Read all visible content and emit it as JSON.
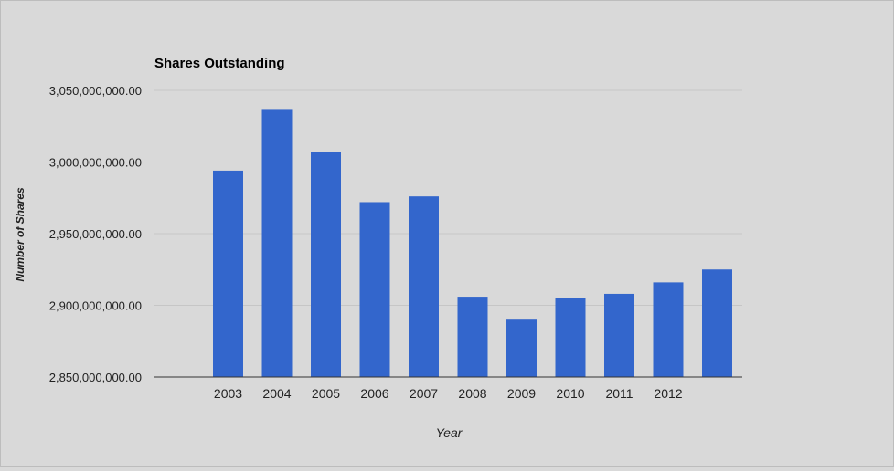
{
  "chart_data": {
    "type": "bar",
    "title": "Shares Outstanding",
    "xlabel": "Year",
    "ylabel": "Number of Shares",
    "categories": [
      "2003",
      "2004",
      "2005",
      "2006",
      "2007",
      "2008",
      "2009",
      "2010",
      "2011",
      "2012",
      ""
    ],
    "values": [
      2994000000,
      3037000000,
      3007000000,
      2972000000,
      2976000000,
      2906000000,
      2890000000,
      2905000000,
      2908000000,
      2916000000,
      2925000000
    ],
    "ylim": [
      2850000000,
      3050000000
    ],
    "yticks": [
      "2,850,000,000.00",
      "2,900,000,000.00",
      "2,950,000,000.00",
      "3,000,000,000.00",
      "3,050,000,000.00"
    ],
    "ytick_values": [
      2850000000,
      2900000000,
      2950000000,
      3000000000,
      3050000000
    ],
    "grid": true,
    "legend": "none",
    "colors": {
      "bar": "#3366cc",
      "background": "#d9d9d9",
      "grid": "#c6c6c6",
      "axis": "#333333",
      "text": "#222222"
    }
  }
}
